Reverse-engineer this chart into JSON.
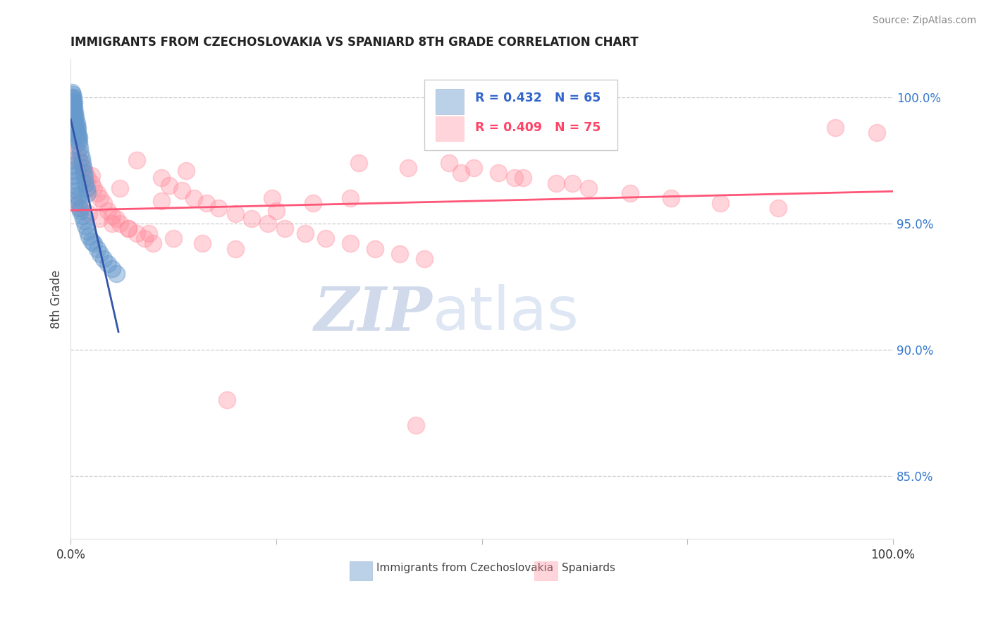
{
  "title": "IMMIGRANTS FROM CZECHOSLOVAKIA VS SPANIARD 8TH GRADE CORRELATION CHART",
  "source_text": "Source: ZipAtlas.com",
  "ylabel": "8th Grade",
  "watermark_zip": "ZIP",
  "watermark_atlas": "atlas",
  "xlim": [
    0.0,
    1.0
  ],
  "ylim": [
    0.825,
    1.015
  ],
  "y_tick_right": [
    0.85,
    0.9,
    0.95,
    1.0
  ],
  "y_tick_right_labels": [
    "85.0%",
    "90.0%",
    "95.0%",
    "100.0%"
  ],
  "legend_blue_label": "Immigrants from Czechoslovakia",
  "legend_pink_label": "Spaniards",
  "R_blue": 0.432,
  "N_blue": 65,
  "R_pink": 0.409,
  "N_pink": 75,
  "blue_color": "#6699CC",
  "pink_color": "#FF8899",
  "blue_line_color": "#3355AA",
  "pink_line_color": "#FF5577",
  "blue_x": [
    0.001,
    0.001,
    0.001,
    0.002,
    0.002,
    0.002,
    0.002,
    0.003,
    0.003,
    0.003,
    0.003,
    0.004,
    0.004,
    0.004,
    0.004,
    0.005,
    0.005,
    0.005,
    0.006,
    0.006,
    0.006,
    0.007,
    0.007,
    0.007,
    0.008,
    0.008,
    0.009,
    0.009,
    0.01,
    0.01,
    0.011,
    0.012,
    0.013,
    0.014,
    0.015,
    0.016,
    0.017,
    0.018,
    0.019,
    0.02,
    0.001,
    0.002,
    0.003,
    0.004,
    0.005,
    0.006,
    0.007,
    0.008,
    0.009,
    0.01,
    0.011,
    0.012,
    0.014,
    0.016,
    0.018,
    0.02,
    0.022,
    0.025,
    0.028,
    0.032,
    0.036,
    0.04,
    0.045,
    0.05,
    0.055
  ],
  "blue_y": [
    0.998,
    1.0,
    1.002,
    0.997,
    0.999,
    1.001,
    0.995,
    0.996,
    0.998,
    1.0,
    0.993,
    0.994,
    0.996,
    0.998,
    0.991,
    0.992,
    0.994,
    0.989,
    0.99,
    0.992,
    0.987,
    0.988,
    0.99,
    0.985,
    0.986,
    0.988,
    0.983,
    0.985,
    0.982,
    0.984,
    0.98,
    0.978,
    0.976,
    0.974,
    0.972,
    0.97,
    0.968,
    0.966,
    0.964,
    0.962,
    0.975,
    0.973,
    0.971,
    0.969,
    0.967,
    0.965,
    0.963,
    0.961,
    0.96,
    0.958,
    0.956,
    0.955,
    0.953,
    0.951,
    0.949,
    0.947,
    0.945,
    0.943,
    0.942,
    0.94,
    0.938,
    0.936,
    0.934,
    0.932,
    0.93
  ],
  "pink_x": [
    0.005,
    0.008,
    0.01,
    0.012,
    0.015,
    0.018,
    0.02,
    0.025,
    0.028,
    0.032,
    0.036,
    0.04,
    0.045,
    0.05,
    0.055,
    0.06,
    0.07,
    0.08,
    0.09,
    0.1,
    0.11,
    0.12,
    0.135,
    0.15,
    0.165,
    0.18,
    0.2,
    0.22,
    0.24,
    0.26,
    0.285,
    0.31,
    0.34,
    0.37,
    0.4,
    0.43,
    0.46,
    0.49,
    0.52,
    0.55,
    0.59,
    0.63,
    0.68,
    0.73,
    0.79,
    0.86,
    0.93,
    0.98,
    0.005,
    0.012,
    0.022,
    0.035,
    0.05,
    0.07,
    0.095,
    0.125,
    0.16,
    0.2,
    0.245,
    0.295,
    0.35,
    0.41,
    0.475,
    0.54,
    0.61,
    0.34,
    0.08,
    0.14,
    0.25,
    0.42,
    0.025,
    0.06,
    0.11,
    0.19
  ],
  "pink_y": [
    0.98,
    0.978,
    0.975,
    0.974,
    0.972,
    0.97,
    0.968,
    0.966,
    0.964,
    0.962,
    0.96,
    0.958,
    0.955,
    0.953,
    0.952,
    0.95,
    0.948,
    0.946,
    0.944,
    0.942,
    0.968,
    0.965,
    0.963,
    0.96,
    0.958,
    0.956,
    0.954,
    0.952,
    0.95,
    0.948,
    0.946,
    0.944,
    0.942,
    0.94,
    0.938,
    0.936,
    0.974,
    0.972,
    0.97,
    0.968,
    0.966,
    0.964,
    0.962,
    0.96,
    0.958,
    0.956,
    0.988,
    0.986,
    0.958,
    0.956,
    0.954,
    0.952,
    0.95,
    0.948,
    0.946,
    0.944,
    0.942,
    0.94,
    0.96,
    0.958,
    0.974,
    0.972,
    0.97,
    0.968,
    0.966,
    0.96,
    0.975,
    0.971,
    0.955,
    0.87,
    0.969,
    0.964,
    0.959,
    0.88
  ]
}
